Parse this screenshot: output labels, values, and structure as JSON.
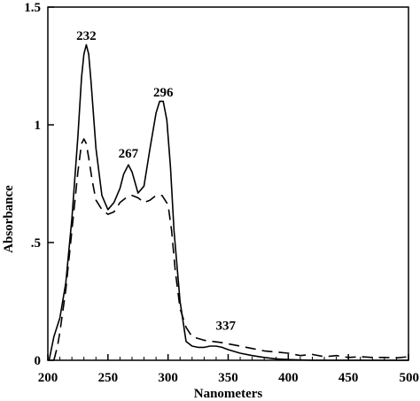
{
  "chart_data": {
    "type": "line",
    "xlabel": "Nanometers",
    "ylabel": "Absorbance",
    "xlim": [
      200,
      500
    ],
    "ylim": [
      0,
      1.5
    ],
    "x_ticks": [
      200,
      250,
      300,
      350,
      400,
      450,
      500
    ],
    "y_ticks": [
      {
        "value": 0,
        "label": "0"
      },
      {
        "value": 0.5,
        "label": ".5"
      },
      {
        "value": 1,
        "label": "1"
      },
      {
        "value": 1.5,
        "label": "1.5"
      }
    ],
    "annotations": [
      {
        "text": "232",
        "x": 232,
        "y": 1.36
      },
      {
        "text": "267",
        "x": 267,
        "y": 0.86
      },
      {
        "text": "296",
        "x": 296,
        "y": 1.12
      },
      {
        "text": "337",
        "x": 348,
        "y": 0.13
      }
    ],
    "series": [
      {
        "style": "solid",
        "x": [
          201,
          205,
          210,
          215,
          220,
          225,
          228,
          230,
          232,
          234,
          236,
          240,
          245,
          250,
          255,
          260,
          263,
          267,
          270,
          275,
          280,
          285,
          290,
          293,
          296,
          299,
          302,
          305,
          310,
          315,
          320,
          325,
          330,
          335,
          340,
          345,
          350,
          360,
          370,
          380,
          390,
          400,
          420,
          450,
          480,
          500
        ],
        "y": [
          0.0,
          0.1,
          0.18,
          0.33,
          0.6,
          0.95,
          1.2,
          1.3,
          1.34,
          1.3,
          1.18,
          0.9,
          0.7,
          0.64,
          0.67,
          0.73,
          0.79,
          0.83,
          0.8,
          0.71,
          0.74,
          0.9,
          1.05,
          1.1,
          1.1,
          1.02,
          0.82,
          0.55,
          0.25,
          0.08,
          0.06,
          0.055,
          0.055,
          0.06,
          0.06,
          0.055,
          0.045,
          0.03,
          0.02,
          0.012,
          0.006,
          0.003,
          0.0,
          0.0,
          0.0,
          0.0
        ]
      },
      {
        "style": "dashed",
        "x": [
          205,
          208,
          210,
          215,
          220,
          225,
          228,
          230,
          232,
          234,
          237,
          240,
          245,
          250,
          255,
          260,
          265,
          270,
          275,
          280,
          285,
          290,
          295,
          300,
          303,
          306,
          310,
          315,
          320,
          330,
          337,
          345,
          350,
          360,
          370,
          380,
          390,
          400,
          410,
          420,
          430,
          440,
          450,
          460,
          470,
          480,
          490,
          500
        ],
        "y": [
          0.0,
          0.06,
          0.12,
          0.3,
          0.55,
          0.8,
          0.92,
          0.94,
          0.92,
          0.86,
          0.76,
          0.68,
          0.64,
          0.62,
          0.63,
          0.67,
          0.69,
          0.7,
          0.69,
          0.67,
          0.68,
          0.7,
          0.7,
          0.66,
          0.55,
          0.38,
          0.22,
          0.14,
          0.1,
          0.085,
          0.08,
          0.075,
          0.07,
          0.06,
          0.05,
          0.04,
          0.035,
          0.03,
          0.02,
          0.025,
          0.015,
          0.02,
          0.012,
          0.015,
          0.012,
          0.012,
          0.01,
          0.015
        ]
      }
    ]
  }
}
